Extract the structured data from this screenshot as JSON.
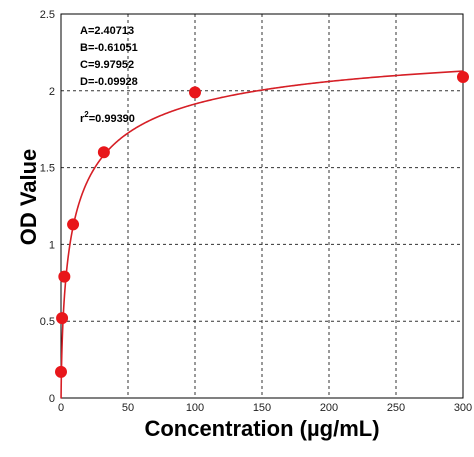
{
  "chart_data": {
    "type": "scatter",
    "xlabel": "Concentration (µg/mL)",
    "ylabel": "OD Value",
    "xlim": [
      0,
      300
    ],
    "ylim": [
      0,
      2.5
    ],
    "x_ticks": [
      0,
      50,
      100,
      150,
      200,
      250,
      300
    ],
    "y_ticks": [
      0,
      0.5,
      1,
      1.5,
      2,
      2.5
    ],
    "x_tick_labels": [
      "0",
      "50",
      "100",
      "150",
      "200",
      "250",
      "300"
    ],
    "y_tick_labels": [
      "0",
      "0.5",
      "1",
      "1.5",
      "2",
      "2.5"
    ],
    "grid": true,
    "fit": {
      "A": 2.40713,
      "B": -0.61051,
      "C": 9.97952,
      "D": -0.09928,
      "labels": {
        "A": "A=2.40713",
        "B": "B=-0.61051",
        "C": "C=9.97952",
        "D": "D=-0.09928",
        "r2_prefix": "r",
        "r2_sup": "2",
        "r2_value": "=0.99390"
      }
    },
    "series": [
      {
        "points": [
          {
            "x": 0,
            "y": 0.17
          },
          {
            "x": 0.8,
            "y": 0.52
          },
          {
            "x": 2.5,
            "y": 0.79
          },
          {
            "x": 9,
            "y": 1.13
          },
          {
            "x": 32,
            "y": 1.6
          },
          {
            "x": 100,
            "y": 1.99
          },
          {
            "x": 300,
            "y": 2.09
          }
        ]
      }
    ],
    "colors": {
      "marker": "#e8171b",
      "curve": "#d61f26",
      "grid": "#333333",
      "axis": "#000000"
    }
  }
}
